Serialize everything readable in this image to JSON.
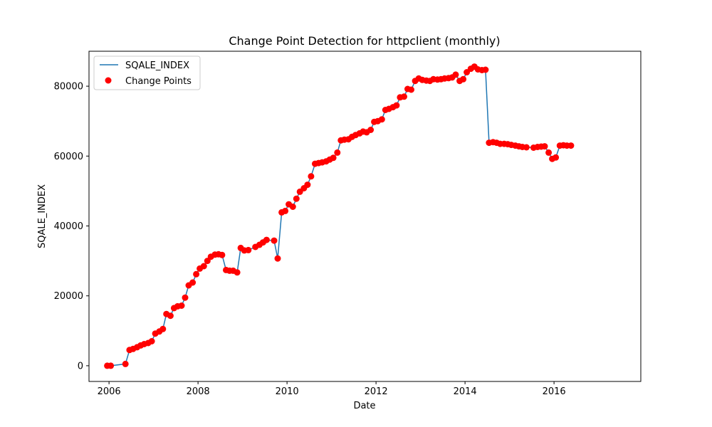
{
  "chart_data": {
    "type": "line",
    "title": "Change Point Detection for httpclient (monthly)",
    "xlabel": "Date",
    "ylabel": "SQALE_INDEX",
    "xlim": [
      2005.55,
      2017.95
    ],
    "ylim": [
      -4500,
      90000
    ],
    "x_ticks": [
      2006,
      2008,
      2010,
      2012,
      2014,
      2016
    ],
    "y_ticks": [
      0,
      20000,
      40000,
      60000,
      80000
    ],
    "grid": false,
    "legend_position": "top-left",
    "legend": [
      "SQALE_INDEX",
      "Change Points"
    ],
    "series": [
      {
        "name": "SQALE_INDEX",
        "color": "#1f77b4",
        "points": [
          [
            2005.96,
            0
          ],
          [
            2006.04,
            0
          ],
          [
            2006.37,
            500
          ],
          [
            2006.46,
            4500
          ],
          [
            2006.54,
            4800
          ],
          [
            2006.63,
            5300
          ],
          [
            2006.71,
            5800
          ],
          [
            2006.79,
            6200
          ],
          [
            2006.88,
            6500
          ],
          [
            2006.96,
            7000
          ],
          [
            2007.04,
            9200
          ],
          [
            2007.13,
            9800
          ],
          [
            2007.21,
            10500
          ],
          [
            2007.29,
            14800
          ],
          [
            2007.38,
            14300
          ],
          [
            2007.46,
            16500
          ],
          [
            2007.54,
            17000
          ],
          [
            2007.63,
            17200
          ],
          [
            2007.71,
            19500
          ],
          [
            2007.79,
            23000
          ],
          [
            2007.88,
            23800
          ],
          [
            2007.96,
            26200
          ],
          [
            2008.04,
            27800
          ],
          [
            2008.13,
            28500
          ],
          [
            2008.21,
            30000
          ],
          [
            2008.29,
            31200
          ],
          [
            2008.38,
            31800
          ],
          [
            2008.46,
            31900
          ],
          [
            2008.54,
            31700
          ],
          [
            2008.63,
            27400
          ],
          [
            2008.71,
            27200
          ],
          [
            2008.79,
            27200
          ],
          [
            2008.88,
            26700
          ],
          [
            2008.96,
            33700
          ],
          [
            2009.04,
            33000
          ],
          [
            2009.13,
            33100
          ],
          [
            2009.29,
            34000
          ],
          [
            2009.38,
            34600
          ],
          [
            2009.46,
            35300
          ],
          [
            2009.54,
            36000
          ],
          [
            2009.71,
            35800
          ],
          [
            2009.79,
            30700
          ],
          [
            2009.88,
            43900
          ],
          [
            2009.96,
            44300
          ],
          [
            2010.04,
            46200
          ],
          [
            2010.13,
            45500
          ],
          [
            2010.21,
            47800
          ],
          [
            2010.29,
            49800
          ],
          [
            2010.38,
            50800
          ],
          [
            2010.46,
            51800
          ],
          [
            2010.54,
            54200
          ],
          [
            2010.63,
            57800
          ],
          [
            2010.71,
            58000
          ],
          [
            2010.79,
            58200
          ],
          [
            2010.88,
            58500
          ],
          [
            2010.96,
            59000
          ],
          [
            2011.04,
            59500
          ],
          [
            2011.13,
            61000
          ],
          [
            2011.21,
            64500
          ],
          [
            2011.29,
            64700
          ],
          [
            2011.38,
            64800
          ],
          [
            2011.46,
            65500
          ],
          [
            2011.54,
            66000
          ],
          [
            2011.63,
            66500
          ],
          [
            2011.71,
            67000
          ],
          [
            2011.79,
            66800
          ],
          [
            2011.88,
            67500
          ],
          [
            2011.96,
            69800
          ],
          [
            2012.04,
            70000
          ],
          [
            2012.13,
            70500
          ],
          [
            2012.21,
            73200
          ],
          [
            2012.29,
            73500
          ],
          [
            2012.38,
            74000
          ],
          [
            2012.46,
            74500
          ],
          [
            2012.54,
            76800
          ],
          [
            2012.63,
            77000
          ],
          [
            2012.71,
            79200
          ],
          [
            2012.79,
            79000
          ],
          [
            2012.88,
            81500
          ],
          [
            2012.96,
            82200
          ],
          [
            2013.04,
            81800
          ],
          [
            2013.13,
            81600
          ],
          [
            2013.21,
            81500
          ],
          [
            2013.29,
            82000
          ],
          [
            2013.38,
            81900
          ],
          [
            2013.46,
            82000
          ],
          [
            2013.54,
            82200
          ],
          [
            2013.63,
            82300
          ],
          [
            2013.71,
            82500
          ],
          [
            2013.79,
            83300
          ],
          [
            2013.88,
            81500
          ],
          [
            2013.96,
            82000
          ],
          [
            2014.04,
            84000
          ],
          [
            2014.13,
            85000
          ],
          [
            2014.21,
            85600
          ],
          [
            2014.29,
            84800
          ],
          [
            2014.38,
            84600
          ],
          [
            2014.46,
            84700
          ],
          [
            2014.54,
            63800
          ],
          [
            2014.63,
            64000
          ],
          [
            2014.71,
            63800
          ],
          [
            2014.79,
            63500
          ],
          [
            2014.88,
            63500
          ],
          [
            2014.96,
            63400
          ],
          [
            2015.04,
            63200
          ],
          [
            2015.13,
            63000
          ],
          [
            2015.21,
            62800
          ],
          [
            2015.29,
            62600
          ],
          [
            2015.38,
            62500
          ],
          [
            2015.54,
            62400
          ],
          [
            2015.63,
            62600
          ],
          [
            2015.71,
            62700
          ],
          [
            2015.79,
            62800
          ],
          [
            2015.88,
            61000
          ],
          [
            2015.96,
            59200
          ],
          [
            2016.04,
            59600
          ],
          [
            2016.13,
            63000
          ],
          [
            2016.21,
            63100
          ],
          [
            2016.29,
            63000
          ],
          [
            2016.38,
            63000
          ]
        ]
      },
      {
        "name": "Change Points",
        "color": "#ff0000"
      }
    ]
  }
}
